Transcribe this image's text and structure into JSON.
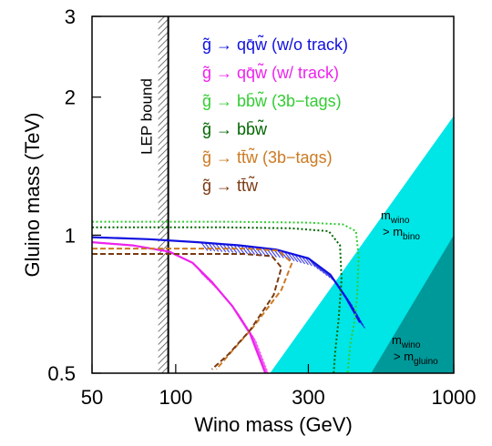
{
  "chart_data": {
    "type": "line",
    "xlabel": "Wino mass (GeV)",
    "ylabel": "Gluino mass (TeV)",
    "x_scale": "log",
    "y_scale": "log",
    "xlim": [
      50,
      1000
    ],
    "ylim": [
      0.5,
      3
    ],
    "x_ticks": [
      {
        "value": 50,
        "label": "50"
      },
      {
        "value": 100,
        "label": "100"
      },
      {
        "value": 300,
        "label": "300"
      },
      {
        "value": 1000,
        "label": "1000"
      }
    ],
    "y_ticks": [
      {
        "value": 0.5,
        "label": "0.5"
      },
      {
        "value": 1,
        "label": "1"
      },
      {
        "value": 2,
        "label": "2"
      },
      {
        "value": 3,
        "label": "3"
      }
    ],
    "grid": false,
    "legend_position": "top-center",
    "series": [
      {
        "name": "g̃ → qq̄w̃ (w/o track)",
        "color": "#1010e0",
        "style": "solid",
        "hatched": true,
        "points": [
          [
            50,
            0.99
          ],
          [
            80,
            0.98
          ],
          [
            120,
            0.965
          ],
          [
            170,
            0.95
          ],
          [
            230,
            0.93
          ],
          [
            300,
            0.89
          ],
          [
            360,
            0.82
          ],
          [
            410,
            0.73
          ],
          [
            460,
            0.645
          ]
        ]
      },
      {
        "name": "g̃ → qq̄w̃ (w/ track)",
        "color": "#ee22ee",
        "style": "solid",
        "hatched": true,
        "points": [
          [
            50,
            0.965
          ],
          [
            70,
            0.95
          ],
          [
            95,
            0.92
          ],
          [
            115,
            0.87
          ],
          [
            135,
            0.79
          ],
          [
            160,
            0.7
          ],
          [
            185,
            0.61
          ],
          [
            210,
            0.5
          ]
        ]
      },
      {
        "name": "g̃ → bb̄w̃ (3b−tags)",
        "color": "#33cc33",
        "style": "dotted",
        "hatched": false,
        "points": [
          [
            50,
            1.07
          ],
          [
            150,
            1.07
          ],
          [
            300,
            1.065
          ],
          [
            400,
            1.055
          ],
          [
            445,
            1.02
          ],
          [
            455,
            0.9
          ],
          [
            450,
            0.75
          ],
          [
            440,
            0.65
          ],
          [
            425,
            0.58
          ],
          [
            415,
            0.5
          ]
        ]
      },
      {
        "name": "g̃ → bb̄w̃",
        "color": "#006600",
        "style": "dotted",
        "hatched": false,
        "points": [
          [
            50,
            1.04
          ],
          [
            150,
            1.04
          ],
          [
            260,
            1.035
          ],
          [
            355,
            1.02
          ],
          [
            390,
            0.95
          ],
          [
            395,
            0.8
          ],
          [
            385,
            0.65
          ],
          [
            375,
            0.56
          ],
          [
            370,
            0.5
          ]
        ]
      },
      {
        "name": "g̃ → tt̄w̃ (3b−tags)",
        "color": "#cc7a22",
        "style": "dashed",
        "hatched": false,
        "points": [
          [
            50,
            0.935
          ],
          [
            100,
            0.935
          ],
          [
            180,
            0.935
          ],
          [
            235,
            0.925
          ],
          [
            262,
            0.87
          ],
          [
            240,
            0.76
          ],
          [
            190,
            0.63
          ],
          [
            160,
            0.56
          ],
          [
            140,
            0.51
          ]
        ]
      },
      {
        "name": "g̃ → tt̄w̃",
        "color": "#7a3a12",
        "style": "dashed",
        "hatched": false,
        "points": [
          [
            50,
            0.91
          ],
          [
            100,
            0.91
          ],
          [
            175,
            0.91
          ],
          [
            222,
            0.9
          ],
          [
            240,
            0.85
          ],
          [
            225,
            0.74
          ],
          [
            185,
            0.62
          ],
          [
            155,
            0.55
          ],
          [
            135,
            0.51
          ]
        ]
      }
    ],
    "lep_bound": {
      "label": "LEP bound",
      "x": 94
    },
    "regions": [
      {
        "name": "m_wino > m_bino",
        "label_main": "m",
        "label_sub": "wino",
        "label_rel": "> m",
        "label_sub2": "bino",
        "color": "#00e5e5",
        "boundary": [
          [
            216,
            0.5
          ],
          [
            1000,
            1.82
          ]
        ]
      },
      {
        "name": "m_wino > m_gluino",
        "label_main": "m",
        "label_sub": "wino",
        "label_rel": "> m",
        "label_sub2": "gluino",
        "color": "#009999",
        "boundary": [
          [
            500,
            0.5
          ],
          [
            1000,
            1.0
          ]
        ]
      }
    ]
  }
}
